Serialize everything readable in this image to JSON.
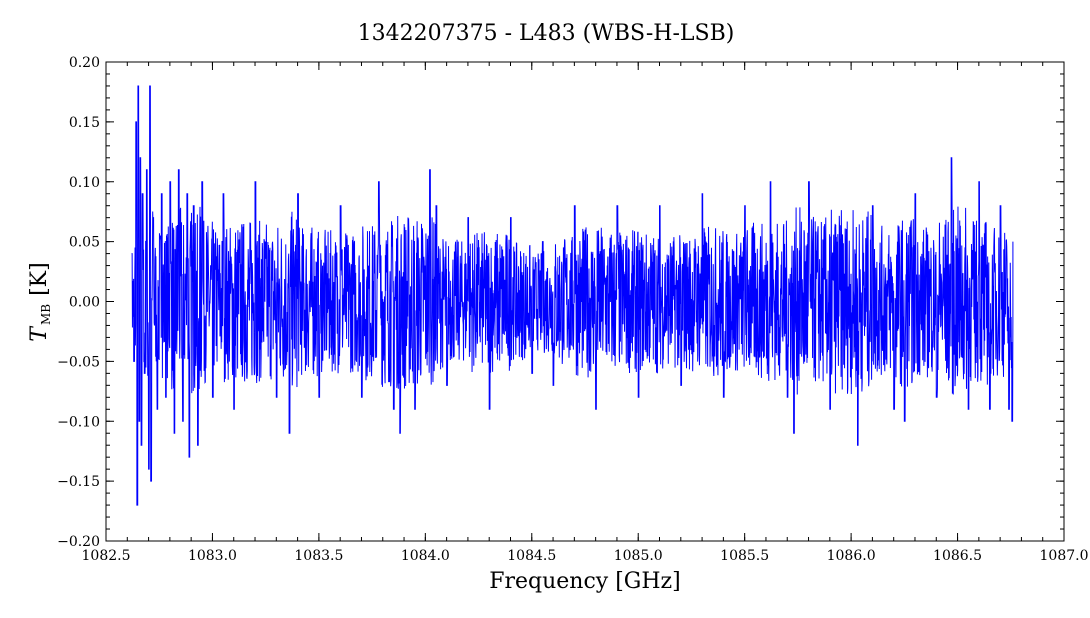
{
  "chart_data": {
    "type": "line",
    "title": "1342207375 - L483 (WBS-H-LSB)",
    "xlabel": "Frequency [GHz]",
    "ylabel": {
      "main": "T",
      "sub": "MB",
      "unit": "[K]"
    },
    "xlim": [
      1082.5,
      1087.0
    ],
    "ylim": [
      -0.2,
      0.2
    ],
    "xticks": [
      "1082.5",
      "1083.0",
      "1083.5",
      "1084.0",
      "1084.5",
      "1085.0",
      "1085.5",
      "1086.0",
      "1086.5",
      "1087.0"
    ],
    "yticks": [
      "−0.20",
      "−0.15",
      "−0.10",
      "−0.05",
      "0.00",
      "0.05",
      "0.10",
      "0.15",
      "0.20"
    ],
    "grid": false,
    "line_color": "#0000ff",
    "series": [
      {
        "x_range": [
          1082.62,
          1086.76
        ],
        "points": [
          [
            1082.62,
            0.04
          ],
          [
            1082.63,
            -0.05
          ],
          [
            1082.64,
            0.15
          ],
          [
            1082.645,
            -0.17
          ],
          [
            1082.65,
            0.18
          ],
          [
            1082.655,
            -0.1
          ],
          [
            1082.66,
            0.12
          ],
          [
            1082.665,
            -0.12
          ],
          [
            1082.67,
            0.09
          ],
          [
            1082.68,
            -0.06
          ],
          [
            1082.69,
            0.11
          ],
          [
            1082.7,
            -0.14
          ],
          [
            1082.705,
            0.18
          ],
          [
            1082.71,
            -0.15
          ],
          [
            1082.72,
            0.07
          ],
          [
            1082.74,
            -0.09
          ],
          [
            1082.76,
            0.09
          ],
          [
            1082.78,
            -0.08
          ],
          [
            1082.8,
            0.1
          ],
          [
            1082.82,
            -0.11
          ],
          [
            1082.84,
            0.11
          ],
          [
            1082.86,
            -0.1
          ],
          [
            1082.88,
            0.09
          ],
          [
            1082.89,
            -0.13
          ],
          [
            1082.91,
            0.08
          ],
          [
            1082.93,
            -0.12
          ],
          [
            1082.95,
            0.1
          ],
          [
            1083.0,
            -0.08
          ],
          [
            1083.05,
            0.09
          ],
          [
            1083.1,
            -0.09
          ],
          [
            1083.2,
            0.1
          ],
          [
            1083.3,
            -0.08
          ],
          [
            1083.36,
            -0.11
          ],
          [
            1083.4,
            0.09
          ],
          [
            1083.5,
            -0.08
          ],
          [
            1083.6,
            0.08
          ],
          [
            1083.7,
            -0.08
          ],
          [
            1083.78,
            0.1
          ],
          [
            1083.85,
            -0.09
          ],
          [
            1083.88,
            -0.11
          ],
          [
            1083.95,
            -0.09
          ],
          [
            1084.02,
            0.11
          ],
          [
            1084.05,
            0.08
          ],
          [
            1084.1,
            -0.07
          ],
          [
            1084.2,
            0.07
          ],
          [
            1084.3,
            -0.09
          ],
          [
            1084.4,
            0.07
          ],
          [
            1084.5,
            -0.06
          ],
          [
            1084.55,
            0.05
          ],
          [
            1084.6,
            -0.07
          ],
          [
            1084.7,
            0.08
          ],
          [
            1084.8,
            -0.09
          ],
          [
            1084.9,
            0.08
          ],
          [
            1085.0,
            -0.08
          ],
          [
            1085.1,
            0.08
          ],
          [
            1085.2,
            -0.07
          ],
          [
            1085.3,
            0.09
          ],
          [
            1085.4,
            -0.08
          ],
          [
            1085.5,
            0.08
          ],
          [
            1085.62,
            0.1
          ],
          [
            1085.7,
            -0.08
          ],
          [
            1085.73,
            -0.11
          ],
          [
            1085.8,
            0.1
          ],
          [
            1085.9,
            -0.09
          ],
          [
            1086.03,
            -0.12
          ],
          [
            1086.1,
            0.08
          ],
          [
            1086.2,
            -0.09
          ],
          [
            1086.25,
            -0.1
          ],
          [
            1086.3,
            0.09
          ],
          [
            1086.4,
            -0.08
          ],
          [
            1086.47,
            0.12
          ],
          [
            1086.55,
            -0.09
          ],
          [
            1086.6,
            0.1
          ],
          [
            1086.65,
            -0.09
          ],
          [
            1086.7,
            0.08
          ],
          [
            1086.74,
            -0.09
          ],
          [
            1086.755,
            -0.1
          ],
          [
            1086.76,
            0.05
          ]
        ]
      }
    ]
  }
}
